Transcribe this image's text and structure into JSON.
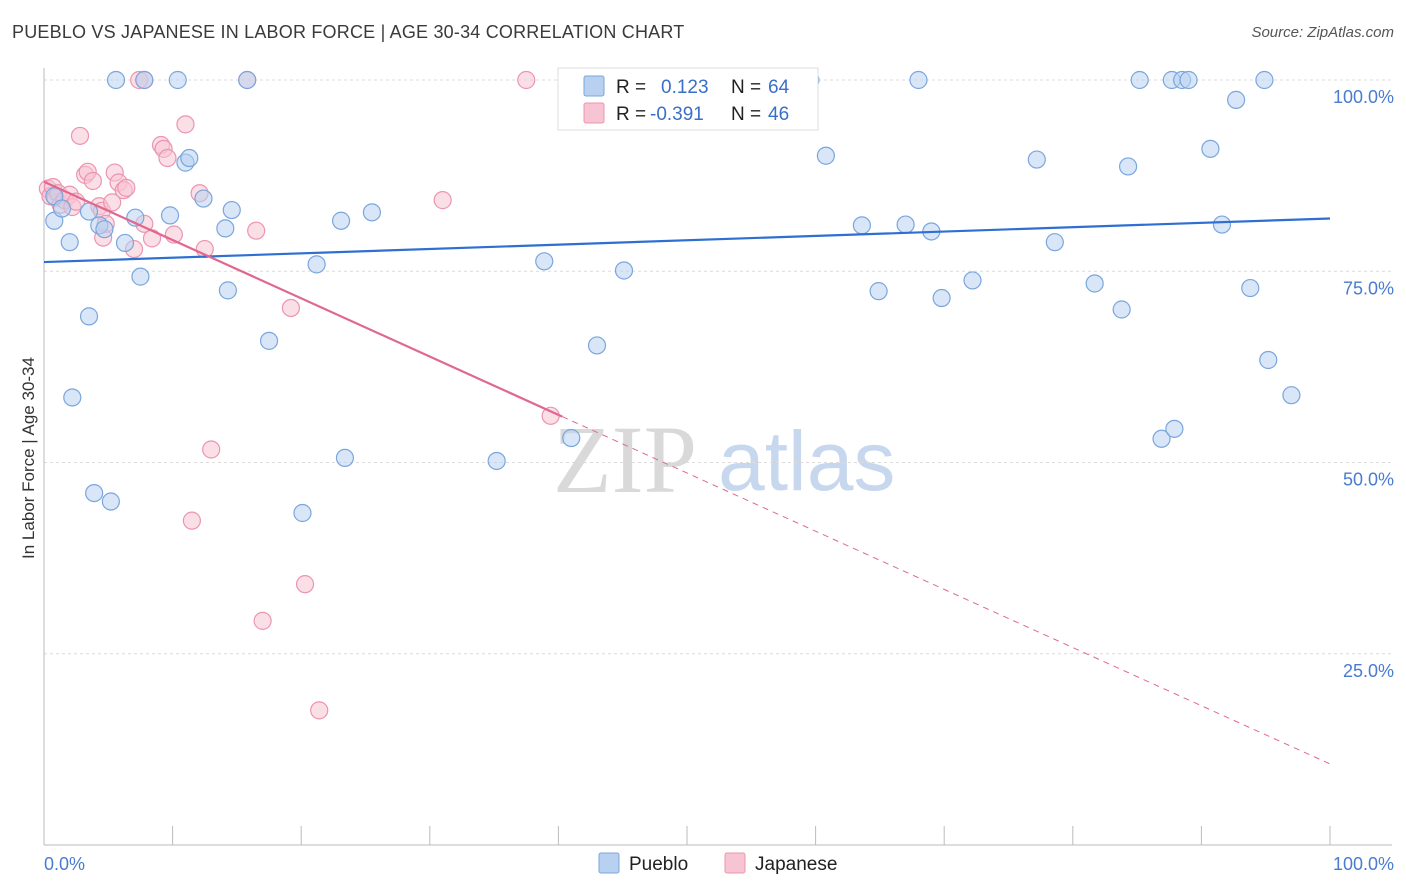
{
  "title": "PUEBLO VS JAPANESE IN LABOR FORCE | AGE 30-34 CORRELATION CHART",
  "source": "Source: ZipAtlas.com",
  "watermark": {
    "zip": "ZIP",
    "atlas": "atlas"
  },
  "colors": {
    "pueblo_fill": "#b8d1f0",
    "pueblo_stroke": "#7aa6de",
    "pueblo_line": "#2e6fd1",
    "japanese_fill": "#f7c4d4",
    "japanese_stroke": "#ec94b1",
    "japanese_line": "#e0688f",
    "axis_label": "#4a7bd0"
  },
  "legend": {
    "rows": [
      {
        "r_label": "R = ",
        "r_value": "0.123",
        "n_label": "N = ",
        "n_value": "64"
      },
      {
        "r_label": "R = ",
        "r_value": "-0.391",
        "n_label": "N = ",
        "n_value": "46"
      }
    ]
  },
  "bottom_legend": {
    "pueblo": "Pueblo",
    "japanese": "Japanese"
  },
  "chart_data": {
    "type": "scatter",
    "title": "PUEBLO VS JAPANESE IN LABOR FORCE | AGE 30-34 CORRELATION CHART",
    "xlabel": "",
    "ylabel": "In Labor Force | Age 30-34",
    "xlim": [
      0,
      100
    ],
    "ylim": [
      0,
      100
    ],
    "x_tick_labels": [
      "0.0%",
      "100.0%"
    ],
    "y_ticks": [
      25,
      50,
      75,
      100
    ],
    "y_tick_labels": [
      "25.0%",
      "50.0%",
      "75.0%",
      "100.0%"
    ],
    "grid": true,
    "series": [
      {
        "name": "Pueblo",
        "r": 0.123,
        "n": 64,
        "trend": {
          "x": [
            0,
            100
          ],
          "y": [
            76.2,
            81.9
          ],
          "style": "solid"
        },
        "points": [
          [
            0.8,
            84.8
          ],
          [
            0.8,
            81.6
          ],
          [
            1.4,
            83.2
          ],
          [
            2.0,
            78.8
          ],
          [
            2.2,
            58.5
          ],
          [
            3.5,
            82.8
          ],
          [
            3.5,
            69.1
          ],
          [
            3.9,
            46.0
          ],
          [
            4.3,
            81.0
          ],
          [
            4.7,
            80.5
          ],
          [
            5.2,
            44.9
          ],
          [
            5.6,
            100
          ],
          [
            6.3,
            78.7
          ],
          [
            7.1,
            82.0
          ],
          [
            7.5,
            74.3
          ],
          [
            7.8,
            100
          ],
          [
            9.8,
            82.3
          ],
          [
            10.4,
            100
          ],
          [
            11.0,
            89.2
          ],
          [
            11.3,
            89.8
          ],
          [
            12.4,
            84.5
          ],
          [
            14.1,
            80.6
          ],
          [
            14.3,
            72.5
          ],
          [
            14.6,
            83.0
          ],
          [
            15.8,
            100
          ],
          [
            17.5,
            65.9
          ],
          [
            20.1,
            43.4
          ],
          [
            21.2,
            75.9
          ],
          [
            23.1,
            81.6
          ],
          [
            23.4,
            50.6
          ],
          [
            25.5,
            82.7
          ],
          [
            35.2,
            50.2
          ],
          [
            38.9,
            76.3
          ],
          [
            41.0,
            53.2
          ],
          [
            43.0,
            65.3
          ],
          [
            45.1,
            75.1
          ],
          [
            59.6,
            100
          ],
          [
            60.8,
            90.1
          ],
          [
            63.6,
            81.0
          ],
          [
            64.9,
            72.4
          ],
          [
            67.0,
            81.1
          ],
          [
            69.0,
            80.2
          ],
          [
            69.8,
            71.5
          ],
          [
            68.0,
            100
          ],
          [
            72.2,
            73.8
          ],
          [
            77.2,
            89.6
          ],
          [
            78.6,
            78.8
          ],
          [
            81.7,
            73.4
          ],
          [
            84.3,
            88.7
          ],
          [
            83.8,
            70.0
          ],
          [
            85.2,
            100
          ],
          [
            86.9,
            53.1
          ],
          [
            87.7,
            100
          ],
          [
            88.5,
            100
          ],
          [
            89.0,
            100
          ],
          [
            87.9,
            54.4
          ],
          [
            90.7,
            91.0
          ],
          [
            91.6,
            81.1
          ],
          [
            92.7,
            97.4
          ],
          [
            93.8,
            72.8
          ],
          [
            94.9,
            100
          ],
          [
            95.2,
            63.4
          ],
          [
            97.0,
            58.8
          ],
          [
            58.5,
            100
          ]
        ]
      },
      {
        "name": "Japanese",
        "r": -0.391,
        "n": 46,
        "trend": {
          "x": [
            0,
            40.3
          ],
          "y": [
            86.7,
            56.0
          ],
          "style": "solid"
        },
        "trend_extension": {
          "x": [
            40.3,
            100
          ],
          "y": [
            56.0,
            10.6
          ],
          "style": "dashed"
        },
        "points": [
          [
            0.3,
            85.8
          ],
          [
            0.5,
            84.8
          ],
          [
            0.7,
            86.0
          ],
          [
            0.9,
            84.6
          ],
          [
            1.1,
            85.2
          ],
          [
            1.3,
            83.7
          ],
          [
            1.6,
            84.3
          ],
          [
            2.0,
            85.0
          ],
          [
            2.2,
            83.4
          ],
          [
            2.5,
            84.1
          ],
          [
            2.8,
            92.7
          ],
          [
            3.2,
            87.6
          ],
          [
            3.4,
            88.0
          ],
          [
            3.8,
            86.8
          ],
          [
            4.3,
            83.5
          ],
          [
            4.5,
            82.9
          ],
          [
            4.6,
            79.4
          ],
          [
            4.8,
            81.2
          ],
          [
            5.3,
            84.0
          ],
          [
            5.5,
            87.9
          ],
          [
            5.8,
            86.6
          ],
          [
            6.2,
            85.6
          ],
          [
            6.4,
            85.9
          ],
          [
            7.0,
            77.9
          ],
          [
            7.4,
            100
          ],
          [
            7.8,
            100
          ],
          [
            7.8,
            81.2
          ],
          [
            8.4,
            79.3
          ],
          [
            9.1,
            91.5
          ],
          [
            9.3,
            91.0
          ],
          [
            9.6,
            89.8
          ],
          [
            10.1,
            79.8
          ],
          [
            11.0,
            94.2
          ],
          [
            11.5,
            42.4
          ],
          [
            12.1,
            85.2
          ],
          [
            12.5,
            77.9
          ],
          [
            13.0,
            51.7
          ],
          [
            15.8,
            100
          ],
          [
            16.5,
            80.3
          ],
          [
            17.0,
            29.3
          ],
          [
            19.2,
            70.2
          ],
          [
            20.3,
            34.1
          ],
          [
            21.4,
            17.6
          ],
          [
            31.0,
            84.3
          ],
          [
            37.5,
            100
          ],
          [
            39.4,
            56.1
          ]
        ]
      }
    ]
  }
}
